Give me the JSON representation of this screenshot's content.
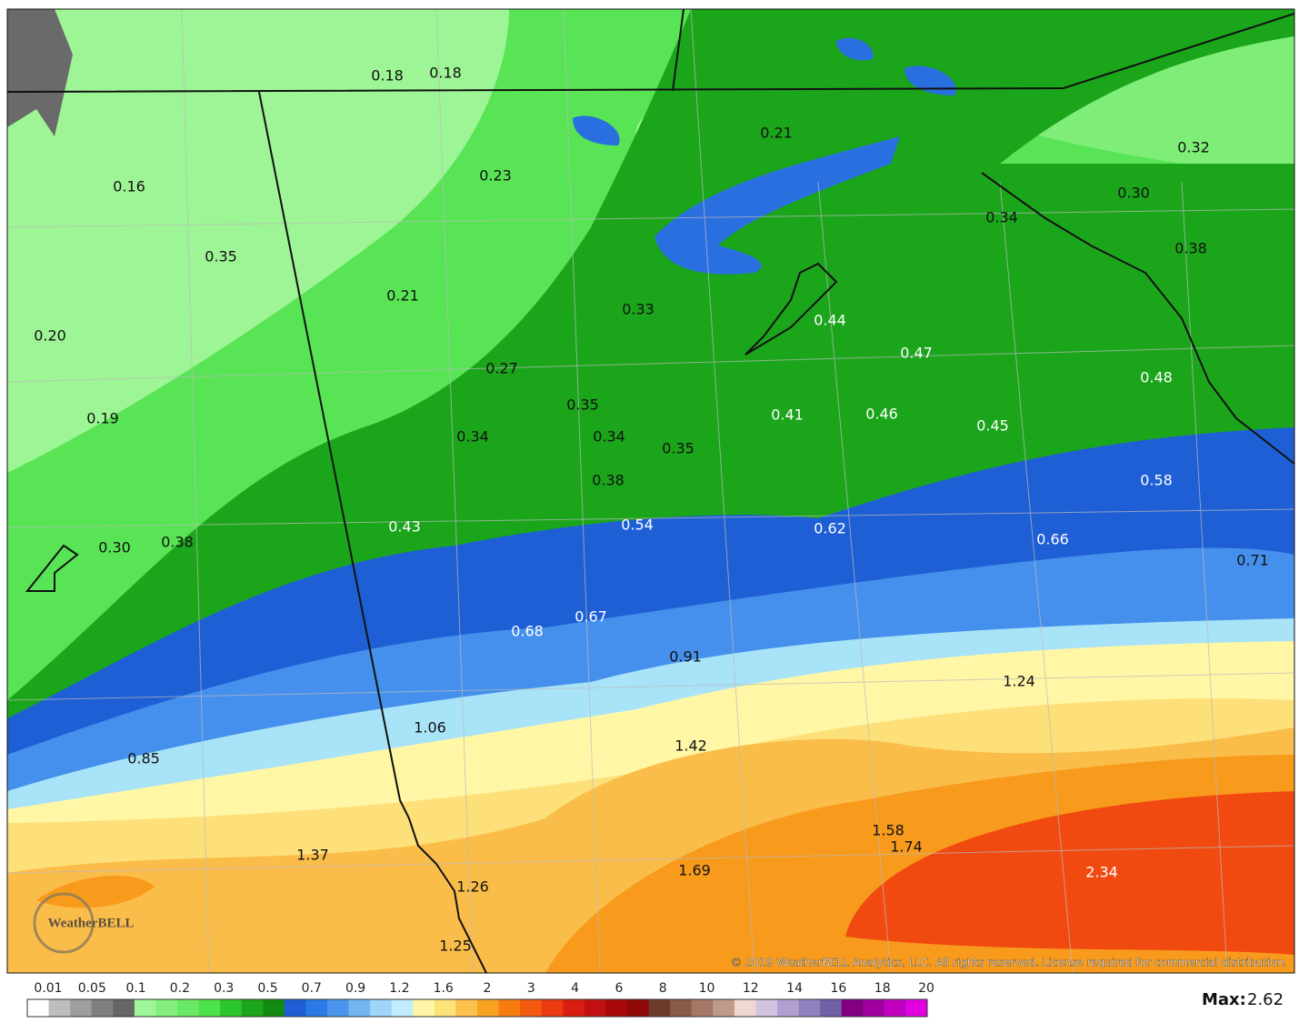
{
  "map": {
    "labels": [
      "0.18",
      "0.18",
      "0.21",
      "0.32",
      "0.16",
      "0.23",
      "0.30",
      "0.34",
      "0.38",
      "0.35",
      "0.21",
      "0.33",
      "0.44",
      "0.47",
      "0.20",
      "0.27",
      "0.48",
      "0.35",
      "0.41",
      "0.46",
      "0.45",
      "0.19",
      "0.34",
      "0.34",
      "0.35",
      "0.38",
      "0.58",
      "0.43",
      "0.54",
      "0.62",
      "0.66",
      "0.30",
      "0.38",
      "0.71",
      "0.68",
      "0.67",
      "0.91",
      "1.24",
      "1.06",
      "1.42",
      "0.85",
      "1.58",
      "1.74",
      "1.37",
      "1.69",
      "2.34",
      "1.26",
      "1.25"
    ]
  },
  "legend": {
    "ticks": [
      "0.01",
      "0.05",
      "0.1",
      "0.2",
      "0.3",
      "0.5",
      "0.7",
      "0.9",
      "1.2",
      "1.6",
      "2",
      "3",
      "4",
      "6",
      "8",
      "10",
      "12",
      "14",
      "16",
      "18",
      "20"
    ]
  },
  "max": {
    "label": "Max:",
    "value": "2.62"
  },
  "copyright": "© 2019 WeatherBELL Analytics, LLC. All rights reserved. License required for commercial distribution.",
  "logo": "WeatherBELL"
}
